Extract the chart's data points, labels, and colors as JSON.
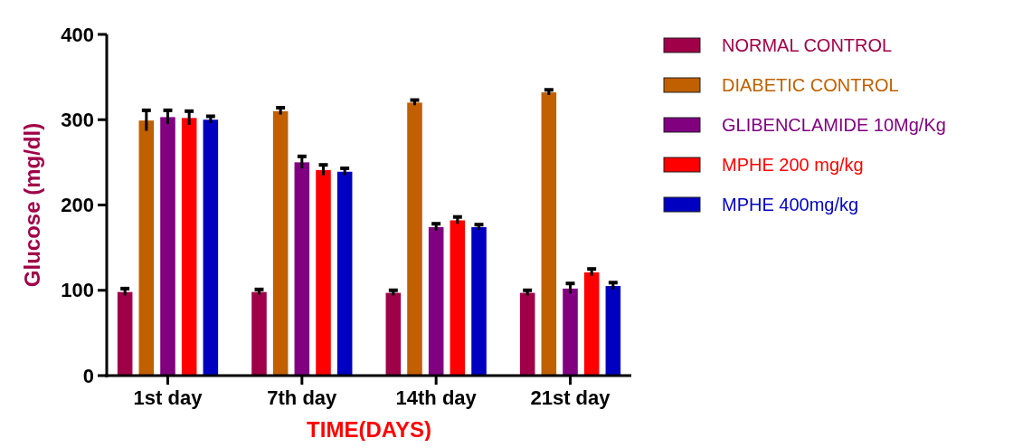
{
  "chart_data": {
    "type": "bar",
    "xlabel": "TIME(DAYS)",
    "ylabel": "Glucose (mg/dl)",
    "categories": [
      "1st day",
      "7th day",
      "14th day",
      "21st day"
    ],
    "series": [
      {
        "name": "NORMAL CONTROL",
        "color": "#a00048",
        "values": [
          98,
          98,
          97,
          97
        ],
        "errors": [
          4,
          3,
          3,
          3
        ]
      },
      {
        "name": "DIABETIC CONTROL",
        "color": "#c06000",
        "values": [
          299,
          310,
          320,
          332
        ],
        "errors": [
          12,
          4,
          3,
          3
        ]
      },
      {
        "name": "GLIBENCLAMIDE 10Mg/Kg",
        "color": "#800080",
        "values": [
          303,
          250,
          174,
          102
        ],
        "errors": [
          8,
          7,
          4,
          6
        ]
      },
      {
        "name": "MPHE 200 mg/kg",
        "color": "#ff0000",
        "values": [
          302,
          241,
          182,
          121
        ],
        "errors": [
          8,
          6,
          4,
          4
        ]
      },
      {
        "name": "MPHE 400mg/kg",
        "color": "#0000c0",
        "values": [
          300,
          239,
          174,
          105
        ],
        "errors": [
          4,
          4,
          3,
          4
        ]
      }
    ],
    "ylim": [
      0,
      400
    ],
    "yticks": [
      0,
      100,
      200,
      300,
      400
    ],
    "grid": false,
    "legend": "right"
  }
}
